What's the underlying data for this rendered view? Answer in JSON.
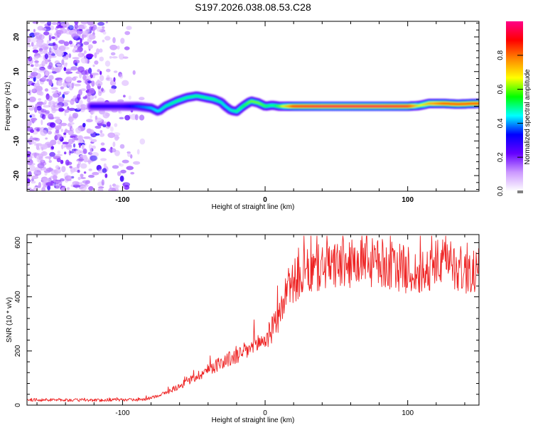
{
  "title": "S197.2026.038.08.53.C28",
  "chart_data": [
    {
      "type": "heatmap",
      "name": "spectrogram",
      "xlabel": "Height of straight line (km)",
      "ylabel": "Frequency (Hz)",
      "xlim": [
        -167,
        150
      ],
      "ylim": [
        -24.5,
        24.5
      ],
      "xticks": [
        -100,
        0,
        100
      ],
      "xtick_labels": [
        "-100",
        "0",
        "100"
      ],
      "yticks": [
        -20,
        -10,
        0,
        10,
        20
      ],
      "ytick_labels": [
        "-20",
        "-10",
        "0",
        "10",
        "20"
      ],
      "ridge": {
        "description_points_x": [
          -122,
          -100,
          -90,
          -80,
          -75,
          -70,
          -62,
          -55,
          -48,
          -42,
          -36,
          -31,
          -28,
          -24,
          -20,
          -15,
          -10,
          -5,
          0,
          5,
          10,
          20,
          40,
          60,
          80,
          100,
          108,
          115,
          125,
          135,
          148
        ],
        "frequency_hz": [
          0,
          0,
          0,
          -0.5,
          -1.5,
          0,
          1.5,
          2.5,
          3,
          2.5,
          2,
          1.2,
          0,
          -1.2,
          -1.5,
          0.2,
          1.5,
          1,
          0,
          0.3,
          0,
          0,
          0,
          0,
          0,
          0,
          0.2,
          0.8,
          0.8,
          0.6,
          0.8
        ],
        "amplitude": [
          0.2,
          0.2,
          0.28,
          0.35,
          0.38,
          0.42,
          0.45,
          0.45,
          0.45,
          0.45,
          0.45,
          0.4,
          0.38,
          0.4,
          0.45,
          0.5,
          0.55,
          0.55,
          0.5,
          0.45,
          0.55,
          0.9,
          0.95,
          0.95,
          0.95,
          0.92,
          0.6,
          0.75,
          0.85,
          0.85,
          0.85
        ]
      },
      "noise_region_x": [
        -167,
        -82
      ]
    },
    {
      "type": "colorbar",
      "name": "colorbar",
      "label": "Normalized spectral amplitude",
      "range": [
        0,
        1
      ],
      "ticks": [
        0.0,
        0.2,
        0.4,
        0.6,
        0.8
      ],
      "tick_labels": [
        "0.0",
        "0.2",
        "0.4",
        "0.6",
        "0.8"
      ],
      "colors": [
        "#ffffff",
        "#cc99ff",
        "#6600ff",
        "#0000ff",
        "#00ffff",
        "#00ff00",
        "#ffff00",
        "#ff8800",
        "#ff0000",
        "#ff0088"
      ]
    },
    {
      "type": "line",
      "name": "snr",
      "xlabel": "Height of straight line (km)",
      "ylabel": "SNR (10 * v/v)",
      "xlim": [
        -167,
        150
      ],
      "ylim": [
        0,
        630
      ],
      "xticks": [
        -100,
        0,
        100
      ],
      "xtick_labels": [
        "-100",
        "0",
        "100"
      ],
      "yticks": [
        0,
        200,
        400,
        600
      ],
      "ytick_labels": [
        "0",
        "200",
        "400",
        "600"
      ],
      "color": "#ee2222",
      "trend_x": [
        -167,
        -120,
        -85,
        -78,
        -70,
        -60,
        -50,
        -40,
        -30,
        -20,
        -10,
        -5,
        0,
        5,
        10,
        15,
        20,
        30,
        40,
        60,
        80,
        100,
        110,
        120,
        130,
        140,
        150
      ],
      "trend_y": [
        20,
        18,
        20,
        30,
        45,
        70,
        100,
        130,
        160,
        180,
        210,
        230,
        240,
        280,
        330,
        420,
        460,
        490,
        510,
        520,
        525,
        500,
        480,
        520,
        530,
        490,
        500
      ]
    }
  ]
}
